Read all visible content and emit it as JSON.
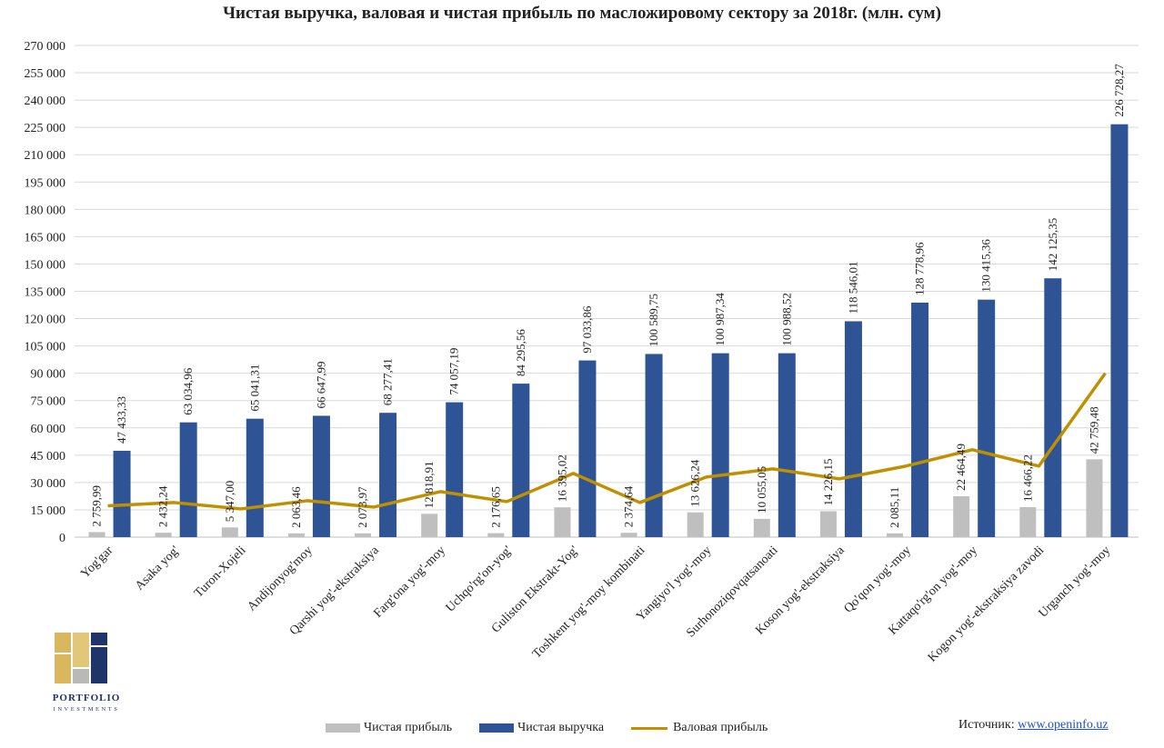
{
  "chart_data": {
    "type": "bar",
    "title": "Чистая выручка, валовая и чистая прибыль по масложировому сектору за 2018г. (млн. сум)",
    "xlabel": "",
    "ylabel": "",
    "ylim": [
      0,
      270000
    ],
    "ytick_step": 15000,
    "yticks": [
      "0",
      "15 000",
      "30 000",
      "45 000",
      "60 000",
      "75 000",
      "90 000",
      "105 000",
      "120 000",
      "135 000",
      "150 000",
      "165 000",
      "180 000",
      "195 000",
      "210 000",
      "225 000",
      "240 000",
      "255 000",
      "270 000"
    ],
    "grid": true,
    "legend_position": "bottom",
    "categories": [
      "Yog'gar",
      "Asaka yog'",
      "Turon-Xojeli",
      "Andijonyog'moy",
      "Qarshi yog'-ekstraksiya",
      "Farg'ona yog'-moy",
      "Uchqo'rg'on-yog'",
      "Guliston Ekstrakt-Yog'",
      "Toshkent yog'-moy kombinati",
      "Yangiyo'l yog'-moy",
      "Surhonoziqovqatsanoati",
      "Koson yog'-ekstraksiya",
      "Qo'qon yog'-moy",
      "Kattaqo'rg'on yog'-moy",
      "Kogon yog'-ekstraksiya zavodi",
      "Urganch yog'-moy"
    ],
    "series": [
      {
        "name": "Чистая прибыль",
        "kind": "bar",
        "color": "#bfbfbf",
        "values": [
          2759.99,
          2432.24,
          5347.0,
          2063.46,
          2073.97,
          12818.91,
          2176.65,
          16395.02,
          2374.64,
          13626.24,
          10055.05,
          14226.15,
          2085.11,
          22464.49,
          16466.22,
          42759.48
        ],
        "labels": [
          "2 759,99",
          "2 432,24",
          "5 347,00",
          "2 063,46",
          "2 073,97",
          "12 818,91",
          "2 176,65",
          "16 395,02",
          "2 374,64",
          "13 626,24",
          "10 055,05",
          "14 226,15",
          "2 085,11",
          "22 464,49",
          "16 466,22",
          "42 759,48"
        ]
      },
      {
        "name": "Чистая выручка",
        "kind": "bar",
        "color": "#2e5496",
        "values": [
          47433.33,
          63034.96,
          65041.31,
          66647.99,
          68277.41,
          74057.19,
          84295.56,
          97033.86,
          100589.75,
          100987.34,
          100988.52,
          118546.01,
          128778.96,
          130415.36,
          142125.35,
          226728.27
        ],
        "labels": [
          "47 433,33",
          "63 034,96",
          "65 041,31",
          "66 647,99",
          "68 277,41",
          "74 057,19",
          "84 295,56",
          "97 033,86",
          "100 589,75",
          "100 987,34",
          "100 988,52",
          "118 546,01",
          "128 778,96",
          "130 415,36",
          "142 125,35",
          "226 728,27"
        ]
      },
      {
        "name": "Валовая прибыль",
        "kind": "line",
        "color": "#bf9000",
        "values": [
          17200,
          19000,
          15500,
          20000,
          16500,
          25000,
          19500,
          35000,
          19000,
          33000,
          37500,
          32000,
          39000,
          48000,
          39000,
          90000
        ]
      }
    ]
  },
  "logo": {
    "name": "PORTFOLIO",
    "tagline": "INVESTMENTS",
    "colors": {
      "gold": "#d9b75e",
      "navy": "#1f3468",
      "grey": "#b9b9b9"
    }
  },
  "source": {
    "label": "Источник:",
    "link_text": "www.openinfo.uz"
  }
}
